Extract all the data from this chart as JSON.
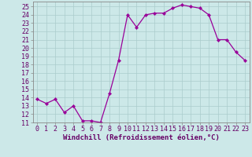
{
  "x": [
    0,
    1,
    2,
    3,
    4,
    5,
    6,
    7,
    8,
    9,
    10,
    11,
    12,
    13,
    14,
    15,
    16,
    17,
    18,
    19,
    20,
    21,
    22,
    23
  ],
  "y": [
    13.8,
    13.3,
    13.8,
    12.2,
    13.0,
    11.2,
    11.2,
    11.0,
    14.5,
    18.5,
    24.0,
    22.5,
    24.0,
    24.2,
    24.2,
    24.8,
    25.2,
    25.0,
    24.8,
    24.0,
    21.0,
    21.0,
    19.5,
    18.5
  ],
  "line_color": "#990099",
  "marker": "D",
  "marker_size": 2.2,
  "xlabel": "Windchill (Refroidissement éolien,°C)",
  "xlabel_fontsize": 6.5,
  "ylabel_ticks": [
    11,
    12,
    13,
    14,
    15,
    16,
    17,
    18,
    19,
    20,
    21,
    22,
    23,
    24,
    25
  ],
  "xlim": [
    -0.5,
    23.5
  ],
  "ylim": [
    11,
    25.6
  ],
  "bg_color": "#cce8e8",
  "grid_color": "#aacccc",
  "tick_fontsize": 6.0,
  "xtick_labels": [
    "0",
    "1",
    "2",
    "3",
    "4",
    "5",
    "6",
    "7",
    "8",
    "9",
    "10",
    "11",
    "12",
    "13",
    "14",
    "15",
    "16",
    "17",
    "18",
    "19",
    "20",
    "21",
    "22",
    "23"
  ],
  "label_color": "#660066",
  "tick_color": "#660066",
  "spine_color": "#888888"
}
